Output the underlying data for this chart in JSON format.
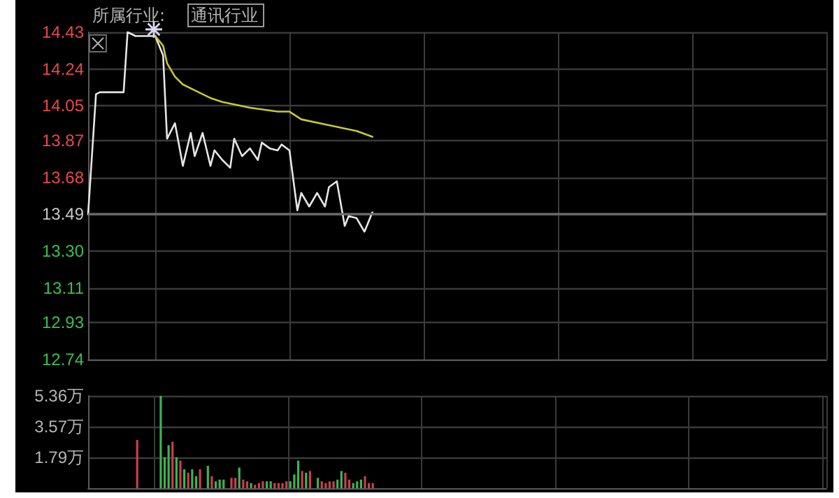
{
  "chart_data": [
    {
      "type": "line",
      "annotations": [
        "所属行业:",
        "通讯行业"
      ],
      "categories": [
        null,
        null,
        null,
        null,
        null,
        null,
        null,
        null,
        null,
        null,
        null,
        null,
        null,
        null,
        null,
        null,
        null,
        null,
        null,
        null,
        null,
        null,
        null,
        null,
        null,
        null,
        null,
        null,
        null,
        null,
        null,
        null,
        null,
        null,
        null,
        null,
        null,
        null,
        null,
        null,
        null,
        null,
        null,
        null,
        null,
        null,
        null,
        null,
        null,
        null,
        null,
        null,
        null,
        null,
        null,
        null,
        null,
        null,
        null,
        null,
        null,
        null,
        null,
        null,
        null,
        null,
        null,
        null,
        null,
        null,
        null,
        null,
        null,
        null,
        null,
        null,
        null,
        null,
        null,
        null,
        null,
        null,
        null,
        null,
        null,
        null,
        null,
        null,
        null,
        null,
        null,
        null,
        null,
        null,
        null,
        null,
        null,
        null,
        null,
        null,
        null,
        null,
        null,
        null,
        null,
        null,
        null,
        null,
        null,
        null,
        null,
        null,
        null,
        null,
        null,
        null,
        null,
        null,
        null,
        null,
        null,
        null,
        null,
        null,
        null,
        null,
        null,
        null,
        null,
        null,
        null,
        null,
        null,
        null,
        null,
        null,
        null,
        null,
        null,
        null,
        null,
        null,
        null,
        null,
        null,
        null,
        null,
        null,
        null,
        null,
        null,
        null,
        null,
        null,
        null,
        null,
        null,
        null,
        null,
        null,
        null,
        null,
        null,
        null,
        null,
        null,
        null,
        null,
        null,
        null,
        null,
        null,
        null,
        null,
        null,
        null,
        null,
        null,
        null,
        null,
        null,
        null,
        null,
        null,
        null,
        null,
        null,
        null
      ],
      "series": [
        {
          "color": "#e6e6e6",
          "values": [
            13.49,
            null,
            14.11,
            14.12,
            null,
            null,
            null,
            null,
            null,
            14.12,
            14.43,
            null,
            14.41,
            null,
            null,
            null,
            null,
            14.41,
            null,
            14.31,
            13.88,
            null,
            13.96,
            null,
            13.74,
            null,
            13.91,
            13.79,
            null,
            13.91,
            null,
            13.74,
            13.82,
            null,
            13.77,
            null,
            13.73,
            13.88,
            null,
            13.79,
            null,
            13.83,
            null,
            13.77,
            13.86,
            null,
            13.83,
            null,
            13.82,
            13.85,
            null,
            13.82,
            null,
            13.51,
            13.6,
            null,
            13.53,
            null,
            13.6,
            null,
            13.53,
            13.63,
            null,
            13.66,
            null,
            13.43,
            13.48,
            null,
            13.47,
            null,
            13.4,
            13.45,
            13.5,
            null,
            null,
            null,
            null,
            null,
            null,
            null,
            null,
            null,
            null,
            null,
            null,
            null,
            null,
            null,
            null,
            null,
            null,
            null,
            null,
            null,
            null,
            null,
            null,
            null,
            null,
            null,
            null,
            null,
            null,
            null,
            null,
            null,
            null,
            null,
            null,
            null,
            null,
            null,
            null,
            null,
            null,
            null,
            null,
            null,
            null,
            null,
            null,
            null,
            null,
            null,
            null,
            null,
            null,
            null,
            null,
            null,
            null,
            null,
            null,
            null,
            null,
            null,
            null,
            null,
            null,
            null,
            null,
            null,
            null,
            null,
            null,
            null,
            null,
            null,
            null,
            null,
            null,
            null,
            null,
            null,
            null,
            null,
            null,
            null,
            null,
            null,
            null,
            null,
            null,
            null,
            null,
            null,
            null,
            null,
            null,
            null,
            null,
            null,
            null,
            null,
            null,
            null,
            null,
            null,
            null,
            null,
            null,
            null,
            null,
            null,
            null,
            null,
            null,
            null
          ]
        },
        {
          "color": "#c8c832",
          "values": [
            null,
            null,
            null,
            null,
            null,
            null,
            null,
            null,
            null,
            null,
            null,
            null,
            null,
            null,
            null,
            null,
            null,
            14.41,
            null,
            14.36,
            14.27,
            null,
            14.2,
            null,
            14.16,
            null,
            null,
            14.13,
            null,
            null,
            null,
            14.09,
            null,
            null,
            14.07,
            null,
            null,
            null,
            null,
            null,
            null,
            14.04,
            null,
            null,
            null,
            null,
            null,
            null,
            14.02,
            null,
            null,
            14.02,
            null,
            null,
            13.98,
            null,
            null,
            null,
            null,
            null,
            null,
            13.95,
            null,
            null,
            null,
            null,
            null,
            null,
            13.92,
            null,
            null,
            null,
            13.89,
            null,
            null,
            null,
            null,
            null,
            null,
            null,
            null,
            null,
            null,
            null,
            null,
            null,
            null,
            null,
            null,
            null,
            null,
            null,
            null,
            null,
            null,
            null,
            null,
            null,
            null,
            null,
            null,
            null,
            null,
            null,
            null,
            null,
            null,
            null,
            null,
            null,
            null,
            null,
            null,
            null,
            null,
            null,
            null,
            null,
            null,
            null,
            null,
            null,
            null,
            null,
            null,
            null,
            null,
            null,
            null,
            null,
            null,
            null,
            null,
            null,
            null,
            null,
            null,
            null,
            null,
            null,
            null,
            null,
            null,
            null,
            null,
            null,
            null,
            null,
            null,
            null,
            null,
            null,
            null,
            null,
            null,
            null,
            null,
            null,
            null,
            null,
            null,
            null,
            null,
            null,
            null,
            null,
            null,
            null,
            null,
            null,
            null,
            null,
            null,
            null,
            null,
            null,
            null,
            null,
            null,
            null,
            null,
            null,
            null,
            null,
            null,
            null,
            null,
            null
          ]
        }
      ],
      "ylim": [
        12.74,
        14.43
      ],
      "yticks": [
        12.74,
        12.93,
        13.11,
        {
          "value": 13.3,
          "label": "13.30"
        },
        13.49,
        13.68,
        13.87,
        14.05,
        14.24,
        14.43
      ],
      "ref_lines": [
        {
          "axis": "y",
          "value": 13.49,
          "color": "#6e6e6e"
        }
      ],
      "grid": true,
      "line_style": "solid",
      "tick_labels": "y"
    },
    {
      "type": "bar",
      "categories": [
        null,
        null,
        null,
        null,
        null,
        null,
        null,
        null,
        null,
        null,
        null,
        null,
        null,
        null,
        null,
        null,
        null,
        null,
        null,
        null,
        null,
        null,
        null,
        null,
        null,
        null,
        null,
        null,
        null,
        null,
        null,
        null,
        null,
        null,
        null,
        null,
        null,
        null,
        null,
        null,
        null,
        null,
        null,
        null,
        null,
        null,
        null,
        null,
        null,
        null,
        null,
        null,
        null,
        null,
        null,
        null,
        null,
        null,
        null,
        null,
        null,
        null,
        null,
        null,
        null,
        null,
        null,
        null,
        null,
        null,
        null,
        null,
        null,
        null,
        null,
        null,
        null,
        null,
        null,
        null,
        null,
        null,
        null,
        null,
        null,
        null,
        null,
        null,
        null,
        null,
        null,
        null,
        null,
        null,
        null,
        null,
        null,
        null,
        null,
        null,
        null,
        null,
        null,
        null,
        null,
        null,
        null,
        null,
        null,
        null,
        null,
        null,
        null,
        null,
        null,
        null,
        null,
        null,
        null,
        null,
        null,
        null,
        null,
        null,
        null,
        null,
        null,
        null,
        null,
        null,
        null,
        null,
        null,
        null,
        null,
        null,
        null,
        null,
        null,
        null,
        null,
        null,
        null,
        null,
        null,
        null,
        null,
        null,
        null,
        null,
        null,
        null,
        null,
        null,
        null,
        null,
        null,
        null,
        null,
        null,
        null,
        null,
        null,
        null,
        null,
        null,
        null,
        null,
        null,
        null,
        null,
        null,
        null,
        null,
        null,
        null,
        null,
        null,
        null,
        null,
        null,
        null,
        null,
        null,
        null,
        null,
        null,
        null
      ],
      "series": [
        {
          "color": "#c8404a",
          "values": [
            null,
            null,
            null,
            null,
            null,
            null,
            null,
            null,
            null,
            null,
            null,
            null,
            2.8,
            null,
            null,
            null,
            null,
            null,
            null,
            null,
            null,
            2.7,
            null,
            1.6,
            null,
            0.9,
            null,
            null,
            1.1,
            null,
            null,
            0.7,
            null,
            null,
            null,
            null,
            0.6,
            0.6,
            null,
            0.5,
            0.4,
            null,
            0.2,
            0.3,
            0.4,
            null,
            null,
            0.3,
            0.3,
            0.3,
            0.4,
            null,
            null,
            null,
            1.0,
            null,
            1.0,
            null,
            null,
            0.4,
            0.3,
            0.4,
            0.4,
            null,
            null,
            0.9,
            0.5,
            null,
            null,
            null,
            0.7,
            0.3,
            0.3,
            null,
            null,
            null,
            null,
            null,
            null,
            null,
            null,
            null,
            null,
            null,
            null,
            null,
            null,
            null,
            null,
            null,
            null,
            null,
            null,
            null,
            null,
            null,
            null,
            null,
            null,
            null,
            null,
            null,
            null,
            null,
            null,
            null,
            null,
            null,
            null,
            null,
            null,
            null,
            null,
            null,
            null,
            null,
            null,
            null,
            null,
            null,
            null,
            null,
            null,
            null,
            null,
            null,
            null,
            null,
            null,
            null,
            null,
            null,
            null,
            null,
            null,
            null,
            null,
            null,
            null,
            null,
            null,
            null,
            null,
            null,
            null,
            null,
            null,
            null,
            null,
            null,
            null,
            null,
            null,
            null,
            null,
            null,
            null,
            null,
            null,
            null,
            null,
            null,
            null,
            null,
            null,
            null,
            null,
            null,
            null,
            null,
            null,
            null,
            null,
            null,
            null,
            null,
            null,
            null,
            null,
            null,
            null,
            null,
            null,
            null,
            null,
            null,
            null,
            null
          ]
        },
        {
          "color": "#3cb450",
          "values": [
            null,
            null,
            null,
            null,
            null,
            null,
            null,
            null,
            null,
            null,
            null,
            null,
            null,
            null,
            null,
            null,
            null,
            null,
            5.36,
            1.8,
            2.5,
            null,
            1.8,
            null,
            1.1,
            null,
            1.1,
            0.7,
            null,
            null,
            1.3,
            null,
            0.4,
            0.5,
            0.5,
            null,
            null,
            null,
            1.2,
            null,
            null,
            0.3,
            null,
            null,
            null,
            0.4,
            0.4,
            null,
            null,
            null,
            null,
            0.4,
            0.8,
            1.6,
            null,
            0.9,
            null,
            null,
            0.6,
            null,
            null,
            null,
            null,
            0.5,
            1.0,
            null,
            null,
            0.3,
            0.4,
            0.5,
            null,
            null,
            null,
            null,
            null,
            null,
            null,
            null,
            null,
            null,
            null,
            null,
            null,
            null,
            null,
            null,
            null,
            null,
            null,
            null,
            null,
            null,
            null,
            null,
            null,
            null,
            null,
            null,
            null,
            null,
            null,
            null,
            null,
            null,
            null,
            null,
            null,
            null,
            null,
            null,
            null,
            null,
            null,
            null,
            null,
            null,
            null,
            null,
            null,
            null,
            null,
            null,
            null,
            null,
            null,
            null,
            null,
            null,
            null,
            null,
            null,
            null,
            null,
            null,
            null,
            null,
            null,
            null,
            null,
            null,
            null,
            null,
            null,
            null,
            null,
            null,
            null,
            null,
            null,
            null,
            null,
            null,
            null,
            null,
            null,
            null,
            null,
            null,
            null,
            null,
            null,
            null,
            null,
            null,
            null,
            null,
            null,
            null,
            null,
            null,
            null,
            null,
            null,
            null,
            null,
            null,
            null,
            null,
            null,
            null,
            null,
            null,
            null,
            null,
            null,
            null,
            null,
            null
          ]
        }
      ],
      "ylim": [
        0,
        5.36
      ],
      "yticks": [
        {
          "value": 1.79,
          "label": "1.79万"
        },
        {
          "value": 3.57,
          "label": "3.57万"
        },
        {
          "value": 5.36,
          "label": "5.36万"
        }
      ],
      "grid": true,
      "tick_labels": "y"
    }
  ]
}
